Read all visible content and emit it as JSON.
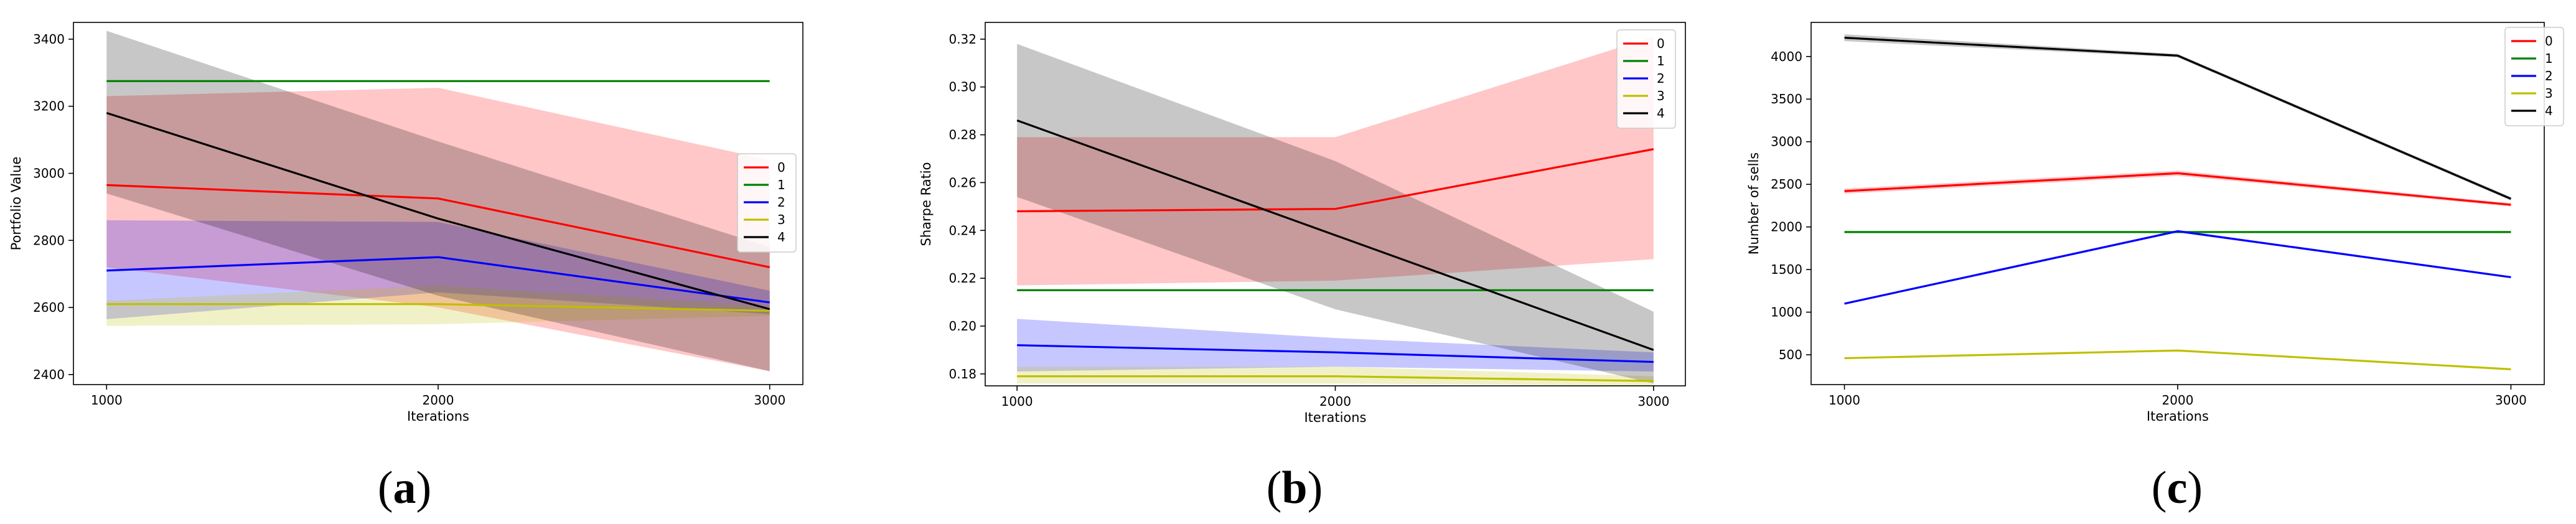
{
  "chart_data": [
    {
      "type": "line",
      "panel_label": "(a)",
      "letter": "a",
      "title": "",
      "xlabel": "Iterations",
      "ylabel": "Portfolio Value",
      "x": [
        1000,
        2000,
        3000
      ],
      "xticks": [
        "1000",
        "2000",
        "3000"
      ],
      "xlim": [
        900,
        3100
      ],
      "ylim": [
        2370,
        3450
      ],
      "yticks": [
        2400,
        2600,
        2800,
        3000,
        3200,
        3400
      ],
      "legend_loc": "center-right",
      "series": [
        {
          "name": "0",
          "color": "#ff0000",
          "values": [
            2965,
            2925,
            2720
          ],
          "lower": [
            2720,
            2600,
            2410
          ],
          "upper": [
            3230,
            3255,
            3040
          ]
        },
        {
          "name": "1",
          "color": "#008000",
          "values": [
            3275,
            3275,
            3275
          ],
          "lower": [
            3275,
            3275,
            3275
          ],
          "upper": [
            3275,
            3275,
            3275
          ]
        },
        {
          "name": "2",
          "color": "#0000ff",
          "values": [
            2710,
            2750,
            2615
          ],
          "lower": [
            2565,
            2645,
            2580
          ],
          "upper": [
            2860,
            2855,
            2650
          ]
        },
        {
          "name": "3",
          "color": "#bfbf00",
          "values": [
            2610,
            2610,
            2590
          ],
          "lower": [
            2545,
            2550,
            2575
          ],
          "upper": [
            2620,
            2665,
            2605
          ]
        },
        {
          "name": "4",
          "color": "#000000",
          "values": [
            3180,
            2865,
            2595
          ],
          "lower": [
            2940,
            2635,
            2410
          ],
          "upper": [
            3425,
            3095,
            2780
          ]
        }
      ]
    },
    {
      "type": "line",
      "panel_label": "(b)",
      "letter": "b",
      "title": "",
      "xlabel": "Iterations",
      "ylabel": "Sharpe Ratio",
      "x": [
        1000,
        2000,
        3000
      ],
      "xticks": [
        "1000",
        "2000",
        "3000"
      ],
      "xlim": [
        900,
        3100
      ],
      "ylim": [
        0.175,
        0.327
      ],
      "yticks": [
        0.18,
        0.2,
        0.22,
        0.24,
        0.26,
        0.28,
        0.3,
        0.32
      ],
      "legend_loc": "top-right",
      "series": [
        {
          "name": "0",
          "color": "#ff0000",
          "values": [
            0.248,
            0.249,
            0.274
          ],
          "lower": [
            0.217,
            0.219,
            0.228
          ],
          "upper": [
            0.279,
            0.279,
            0.321
          ]
        },
        {
          "name": "1",
          "color": "#008000",
          "values": [
            0.215,
            0.215,
            0.215
          ],
          "lower": [
            0.215,
            0.215,
            0.215
          ],
          "upper": [
            0.215,
            0.215,
            0.215
          ]
        },
        {
          "name": "2",
          "color": "#0000ff",
          "values": [
            0.192,
            0.189,
            0.185
          ],
          "lower": [
            0.181,
            0.183,
            0.181
          ],
          "upper": [
            0.203,
            0.195,
            0.189
          ]
        },
        {
          "name": "3",
          "color": "#bfbf00",
          "values": [
            0.179,
            0.179,
            0.177
          ],
          "lower": [
            0.176,
            0.176,
            0.175
          ],
          "upper": [
            0.183,
            0.183,
            0.179
          ]
        },
        {
          "name": "4",
          "color": "#000000",
          "values": [
            0.286,
            0.238,
            0.19
          ],
          "lower": [
            0.254,
            0.207,
            0.176
          ],
          "upper": [
            0.318,
            0.269,
            0.206
          ]
        }
      ]
    },
    {
      "type": "line",
      "panel_label": "(c)",
      "letter": "c",
      "title": "",
      "xlabel": "Iterations",
      "ylabel": "Number of sells",
      "x": [
        1000,
        2000,
        3000
      ],
      "xticks": [
        "1000",
        "2000",
        "3000"
      ],
      "xlim": [
        900,
        3100
      ],
      "ylim": [
        150,
        4400
      ],
      "yticks": [
        500,
        1000,
        1500,
        2000,
        2500,
        3000,
        3500,
        4000
      ],
      "legend_loc": "top-right",
      "series": [
        {
          "name": "0",
          "color": "#ff0000",
          "values": [
            2420,
            2630,
            2260
          ],
          "lower": [
            2390,
            2600,
            2240
          ],
          "upper": [
            2450,
            2660,
            2280
          ]
        },
        {
          "name": "1",
          "color": "#008000",
          "values": [
            1940,
            1940,
            1940
          ],
          "lower": [
            1940,
            1940,
            1940
          ],
          "upper": [
            1940,
            1940,
            1940
          ]
        },
        {
          "name": "2",
          "color": "#0000ff",
          "values": [
            1100,
            1950,
            1410
          ],
          "lower": [
            1090,
            1935,
            1400
          ],
          "upper": [
            1110,
            1965,
            1420
          ]
        },
        {
          "name": "3",
          "color": "#bfbf00",
          "values": [
            460,
            550,
            330
          ],
          "lower": [
            455,
            545,
            325
          ],
          "upper": [
            465,
            555,
            335
          ]
        },
        {
          "name": "4",
          "color": "#000000",
          "values": [
            4220,
            4010,
            2330
          ],
          "lower": [
            4180,
            3990,
            2310
          ],
          "upper": [
            4260,
            4030,
            2350
          ]
        }
      ]
    }
  ]
}
